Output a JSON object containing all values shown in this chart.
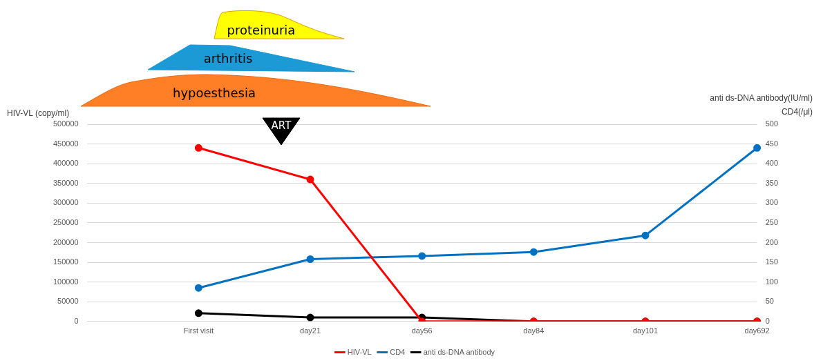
{
  "chart_data": {
    "type": "line",
    "ylabel": "HIV-VL (copy/ml)",
    "y2label": "anti ds-DNA antibody(IU/ml)\nCD4(/μl)",
    "categories": [
      null,
      "First visit",
      "day21",
      "day56",
      "day84",
      "day101",
      "day692"
    ],
    "series": [
      {
        "name": "HIV-VL",
        "color": "#ff0000",
        "values": [
          null,
          440000,
          360000,
          0,
          0,
          0,
          0
        ]
      },
      {
        "name": "CD4",
        "color": "#0070c0",
        "axis": "y2",
        "values": [
          null,
          85,
          158,
          166,
          176,
          218,
          440
        ]
      },
      {
        "name": "anti ds-DNA antibody",
        "color": "#000000",
        "axis": "y2",
        "values": [
          null,
          21,
          10,
          10,
          0,
          0,
          0
        ]
      }
    ],
    "ylim": [
      0,
      500000
    ],
    "yticks": [
      0,
      50000,
      100000,
      150000,
      200000,
      250000,
      300000,
      350000,
      400000,
      450000,
      500000
    ],
    "y2lim": [
      0,
      500
    ],
    "y2ticks": [
      0,
      50,
      100,
      150,
      200,
      250,
      300,
      350,
      400,
      450,
      500
    ],
    "grid": "y",
    "legend": "bottom",
    "marker": "circle",
    "line_style": "solid",
    "annotations": [
      "proteinuria",
      "arthritis",
      "hypoesthesia",
      "ART"
    ]
  }
}
